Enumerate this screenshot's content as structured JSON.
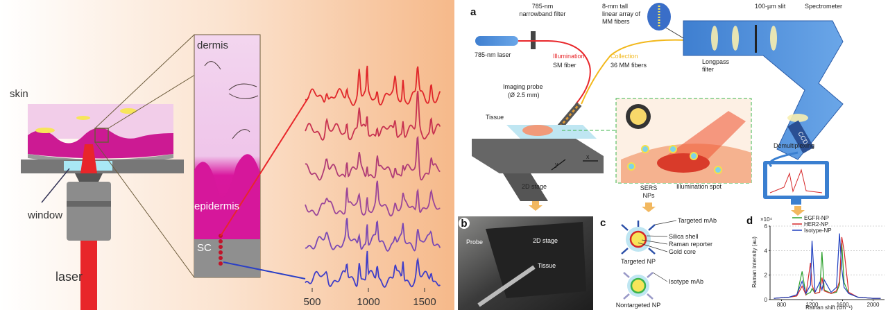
{
  "left_figure": {
    "skin": "skin",
    "window": "window",
    "laser": "laser",
    "dermis": "dermis",
    "epidermis": "epidermis",
    "sc": "SC",
    "x_ticks": [
      500,
      1000,
      1500
    ]
  },
  "panel_a": {
    "label": "a",
    "filter": [
      "785-nm",
      "narrowband filter"
    ],
    "array": [
      "8-mm tall",
      "linear array of",
      "MM fibers"
    ],
    "slit": "100-µm slit",
    "spectrometer": "Spectrometer",
    "laser": "785-nm laser",
    "illumination": "Illumination",
    "sm_fiber": "SM fiber",
    "collection": "Collection",
    "mm_fibers": "36 MM fibers",
    "longpass": [
      "Longpass",
      "filter"
    ],
    "probe": [
      "Imaging probe",
      "(Ø 2.5 mm)"
    ],
    "tissue": "Tissue",
    "ccd": "CCD",
    "demultiplexing": "Demultiplexing",
    "x": "x",
    "y": "y",
    "stage": "2D stage",
    "sers": [
      "SERS",
      "NPs"
    ],
    "spot": "Illumination spot"
  },
  "panel_b": {
    "label": "b",
    "probe": "Probe",
    "stage": "2D stage",
    "tissue": "Tissue"
  },
  "panel_c": {
    "label": "c",
    "targeted_mab": "Targeted mAb",
    "silica": "Silica shell",
    "reporter": "Raman reporter",
    "gold": "Gold core",
    "targeted_np": "Targeted NP",
    "isotype_mab": "Isotype mAb",
    "nontargeted_np": "Nontargeted NP"
  },
  "chart_data": {
    "type": "line",
    "panel_label": "d",
    "y_multiplier": "×10⁴",
    "y_label": "Raman intensity (au)",
    "x_label": "Raman shift (cm⁻¹)",
    "x": [
      700,
      900,
      1000,
      1070,
      1120,
      1180,
      1200,
      1240,
      1300,
      1330,
      1360,
      1450,
      1520,
      1560,
      1590,
      1620,
      1680,
      1800,
      2000,
      2100
    ],
    "series": [
      {
        "name": "EGFR-NP",
        "color": "#2ca02c",
        "values": [
          0.1,
          0.2,
          0.3,
          2.3,
          0.4,
          0.6,
          0.9,
          0.5,
          0.6,
          3.9,
          0.8,
          0.5,
          0.6,
          1.2,
          4.6,
          1.4,
          0.5,
          0.2,
          0.1,
          0.1
        ]
      },
      {
        "name": "HER2-NP",
        "color": "#d62728",
        "values": [
          0.1,
          0.2,
          0.3,
          1.1,
          0.4,
          3.0,
          1.2,
          0.5,
          0.6,
          1.8,
          0.7,
          0.5,
          0.7,
          1.5,
          5.1,
          4.0,
          0.6,
          0.2,
          0.1,
          0.1
        ]
      },
      {
        "name": "Isotype-NP",
        "color": "#1f3fbf",
        "values": [
          0.1,
          0.2,
          0.4,
          1.5,
          0.5,
          1.2,
          4.8,
          0.6,
          1.4,
          0.8,
          1.6,
          0.6,
          1.0,
          5.4,
          2.5,
          1.0,
          0.5,
          0.2,
          0.1,
          0.1
        ]
      }
    ],
    "xlim": [
      650,
      2150
    ],
    "ylim": [
      0,
      6
    ],
    "xticks": [
      800,
      1200,
      1600,
      2000
    ],
    "yticks": [
      0,
      2,
      4,
      6
    ],
    "grid": true
  }
}
